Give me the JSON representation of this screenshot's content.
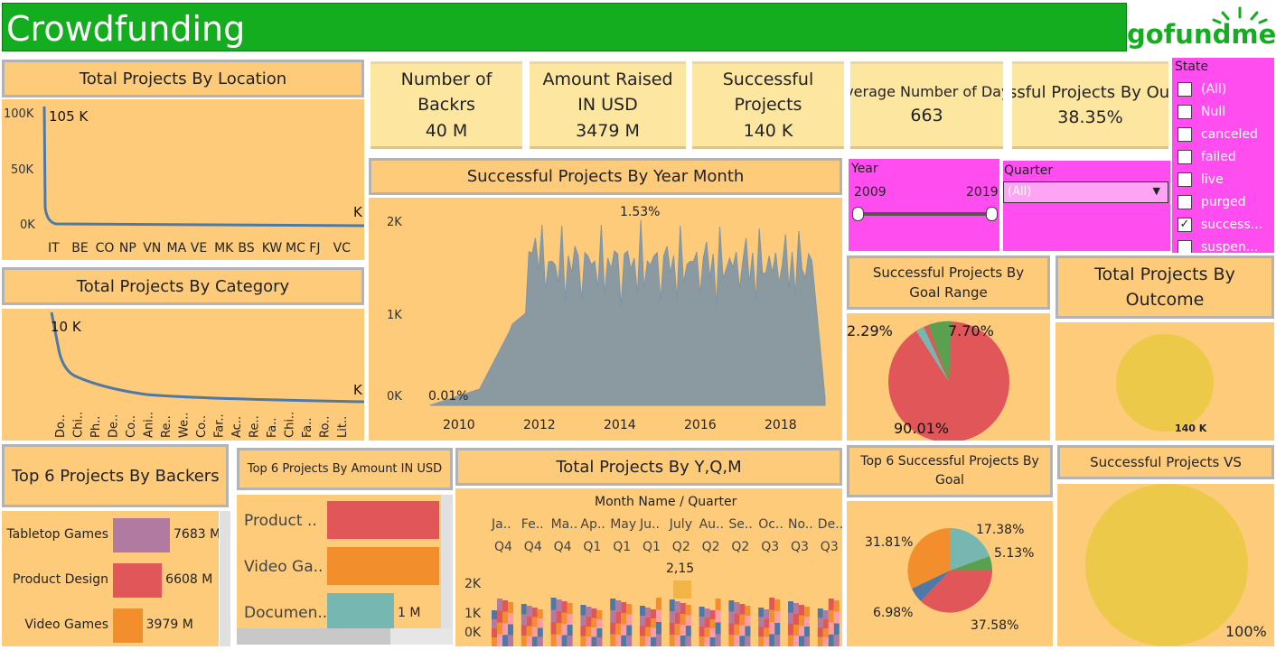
{
  "header": {
    "title": "Crowdfunding",
    "logo_text": "gofundme",
    "colors": {
      "header": "#13ad1f",
      "panel": "#fdcb7a",
      "kpi": "#fde6a0",
      "filter": "#ff4df0"
    }
  },
  "location": {
    "title": "Total Projects By Location",
    "peak_label": "105 K",
    "end_label": "K",
    "y_ticks": [
      "100K",
      "50K",
      "0K"
    ],
    "x_labels": [
      "IT",
      "BE",
      "CO",
      "NP",
      "VN",
      "MA",
      "VE",
      "MK",
      "BS",
      "KW",
      "MC",
      "FJ",
      "VC"
    ]
  },
  "kpis": {
    "backers": {
      "line1": "Number of",
      "line2": "Backrs",
      "value": "40 M"
    },
    "amount": {
      "line1": "Amount Raised",
      "line2": "IN USD",
      "value": "3479 M"
    },
    "successful": {
      "line1": "Successful",
      "line2": "Projects",
      "value": "140 K"
    },
    "avg_days": {
      "label": "Average Number of Days",
      "value": "663"
    },
    "pct": {
      "label": "Successful Projects By Outcome",
      "value": "38.35%"
    }
  },
  "filters": {
    "state": {
      "title": "State",
      "items": [
        {
          "label": "(All)",
          "checked": false
        },
        {
          "label": "Null",
          "checked": false
        },
        {
          "label": "canceled",
          "checked": false
        },
        {
          "label": "failed",
          "checked": false
        },
        {
          "label": "live",
          "checked": false
        },
        {
          "label": "purged",
          "checked": false
        },
        {
          "label": "success...",
          "checked": true
        },
        {
          "label": "suspen...",
          "checked": false
        }
      ]
    },
    "year": {
      "title": "Year",
      "min": "2009",
      "max": "2019"
    },
    "quarter": {
      "title": "Quarter",
      "value": "(All)"
    }
  },
  "category": {
    "title": "Total Projects By Category",
    "peak_label": "10 K",
    "end_label": "K",
    "x_labels": [
      "Do..",
      "Chi..",
      "Ph..",
      "De..",
      "Co..",
      "Ani..",
      "Re..",
      "We..",
      "Co..",
      "Far..",
      "Ac..",
      "Re..",
      "Fa..",
      "Chi..",
      "Fa..",
      "Ro..",
      "Lit.."
    ]
  },
  "year_month": {
    "title": "Successful Projects By Year Month",
    "peak_label": "1.53%",
    "start_label": "0.01%",
    "y_ticks": [
      "2K",
      "1K",
      "0K"
    ],
    "x_labels": [
      "2010",
      "2012",
      "2014",
      "2016",
      "2018"
    ],
    "series_color": "#8a9aa0"
  },
  "goal_range": {
    "title": "Successful Projects By Goal Range",
    "labels": [
      "2.29%",
      "7.70%",
      "90.01%"
    ]
  },
  "outcome": {
    "title": "Total Projects By Outcome",
    "value": "140 K"
  },
  "top_backers": {
    "title": "Top 6 Projects By Backers",
    "bars": [
      {
        "label": "Tabletop Games",
        "value": 7683,
        "value_label": "7683 M",
        "color": "#b07aa1"
      },
      {
        "label": "Product Design",
        "value": 6608,
        "value_label": "6608 M",
        "color": "#e15759"
      },
      {
        "label": "Video Games",
        "value": 3979,
        "value_label": "3979 M",
        "color": "#f28e2b"
      }
    ]
  },
  "top_amount": {
    "title": "Top  6 Projects By Amount IN USD",
    "bars": [
      {
        "label": "Product ..",
        "color": "#e15759",
        "value_label": ""
      },
      {
        "label": "Video Ga..",
        "color": "#f28e2b",
        "value_label": ""
      },
      {
        "label": "Documen..",
        "color": "#76b7b2",
        "value_label": "1 M"
      }
    ]
  },
  "yqm": {
    "title": "Total Projects By Y,Q,M",
    "header": "Month Name / Quarter",
    "months": [
      "Ja..",
      "Fe..",
      "Ma..",
      "Ap..",
      "May",
      "Ju..",
      "July",
      "Au..",
      "Se..",
      "Oc..",
      "No..",
      "De.."
    ],
    "quarters": [
      "Q4",
      "Q4",
      "Q4",
      "Q1",
      "Q1",
      "Q1",
      "Q2",
      "Q2",
      "Q2",
      "Q3",
      "Q3",
      "Q3"
    ],
    "peak_label": "2,15",
    "y_ticks": [
      "2K",
      "1K",
      "0K"
    ]
  },
  "top_goal": {
    "title": "Top  6 Successful Projects By Goal",
    "labels": [
      "17.38%",
      "5.13%",
      "31.81%",
      "6.98%",
      "37.58%"
    ]
  },
  "success_vs": {
    "title": "Successful Projects VS",
    "value": "100%"
  }
}
